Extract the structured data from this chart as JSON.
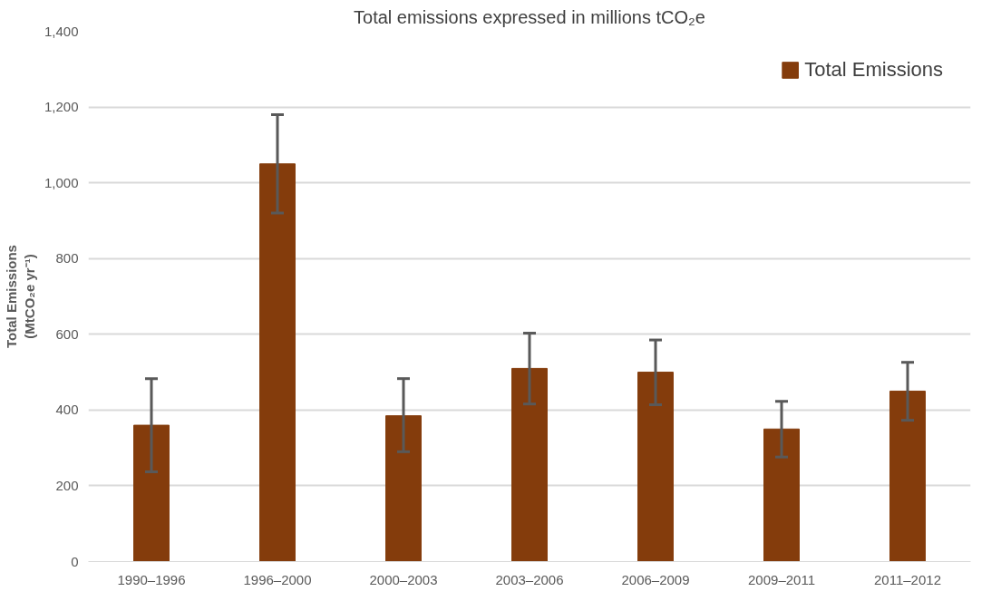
{
  "chart_data": {
    "type": "bar",
    "title": "Total emissions expressed in millions tCO₂e",
    "ylabel": "Total Emissions\n(MtCO₂e yr⁻¹)",
    "categories": [
      "1990–1996",
      "1996–2000",
      "2000–2003",
      "2003–2006",
      "2006–2009",
      "2009–2011",
      "2011–2012"
    ],
    "series": [
      {
        "name": "Total Emissions",
        "color": "#843c0c",
        "values": [
          360,
          1050,
          385,
          510,
          500,
          350,
          450
        ],
        "errors": [
          [
            237,
            483
          ],
          [
            920,
            1180
          ],
          [
            290,
            483
          ],
          [
            416,
            603
          ],
          [
            414,
            585
          ],
          [
            276,
            423
          ],
          [
            373,
            526
          ]
        ]
      }
    ],
    "ylim": [
      0,
      1400
    ],
    "yticks": [
      0,
      {
        "value": 200,
        "label": "200"
      },
      {
        "value": 400,
        "label": "400"
      },
      {
        "value": 600,
        "label": "600"
      },
      {
        "value": 800,
        "label": "800"
      },
      {
        "value": 1000,
        "label": "1,000"
      },
      {
        "value": 1200,
        "label": "1,200"
      },
      {
        "value": 1400,
        "label": "1,400"
      }
    ],
    "grid": "y",
    "legend": "top right"
  }
}
